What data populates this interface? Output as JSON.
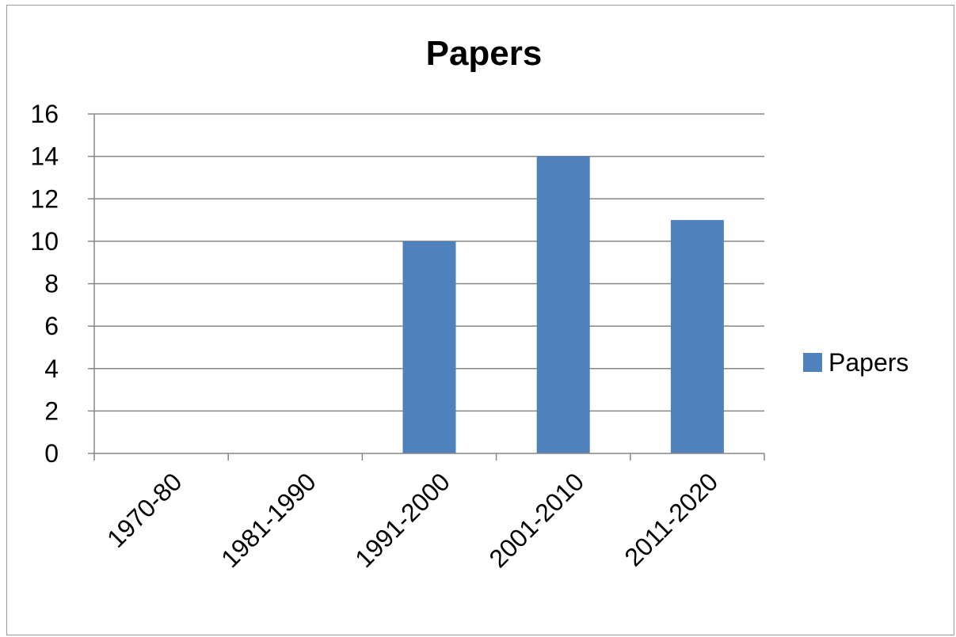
{
  "chart_data": {
    "type": "bar",
    "title": "Papers",
    "categories": [
      "1970-80",
      "1981-1990",
      "1991-2000",
      "2001-2010",
      "2011-2020"
    ],
    "series": [
      {
        "name": "Papers",
        "values": [
          0,
          0,
          10,
          14,
          11
        ]
      }
    ],
    "xlabel": "",
    "ylabel": "",
    "ylim": [
      0,
      16
    ],
    "y_ticks": [
      "0",
      "2",
      "4",
      "6",
      "8",
      "10",
      "12",
      "14",
      "16"
    ],
    "grid": true,
    "legend_position": "right",
    "colors": {
      "series": "#4F81BD",
      "grid": "#868686"
    }
  }
}
